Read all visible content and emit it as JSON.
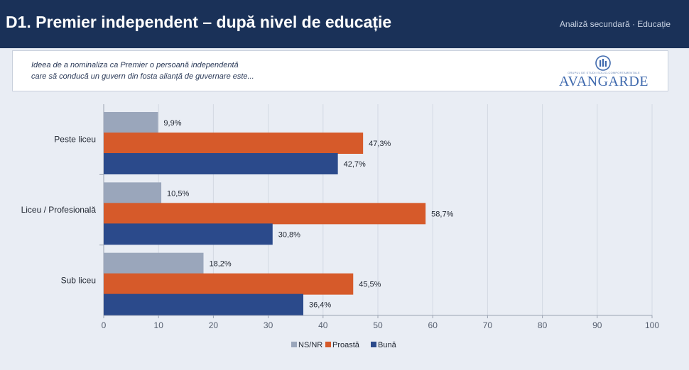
{
  "header": {
    "title": "D1. Premier independent – după nivel de educație",
    "tag": "Analiză secundară · Educație"
  },
  "question": {
    "line1": "Ideea de a nominaliza ca Premier o persoană independentă",
    "line2": "care să conducă un guvern din fosta alianță de guvernare este..."
  },
  "logo": {
    "subtitle": "GRUPUL DE STUDII SOCIO-COMPORTAMENTALE",
    "name": "AVANGARDE"
  },
  "chart_data": {
    "type": "bar",
    "orientation": "horizontal",
    "categories": [
      "Peste liceu",
      "Liceu / Profesională",
      "Sub liceu"
    ],
    "series": [
      {
        "name": "NS/NR",
        "values": [
          9.9,
          10.5,
          18.2
        ],
        "labels": [
          "9,9%",
          "10,5%",
          "18,2%"
        ],
        "color": "#9aa6bb"
      },
      {
        "name": "Proastă",
        "values": [
          47.3,
          58.7,
          45.5
        ],
        "labels": [
          "47,3%",
          "58,7%",
          "45,5%"
        ],
        "color": "#d65a2a"
      },
      {
        "name": "Bună",
        "values": [
          42.7,
          30.8,
          36.4
        ],
        "labels": [
          "42,7%",
          "30,8%",
          "36,4%"
        ],
        "color": "#2b4a8b"
      }
    ],
    "xlim": [
      0,
      100
    ],
    "xticks": [
      0,
      10,
      20,
      30,
      40,
      50,
      60,
      70,
      80,
      90,
      100
    ],
    "grid": true,
    "legend": "bottom-center"
  }
}
